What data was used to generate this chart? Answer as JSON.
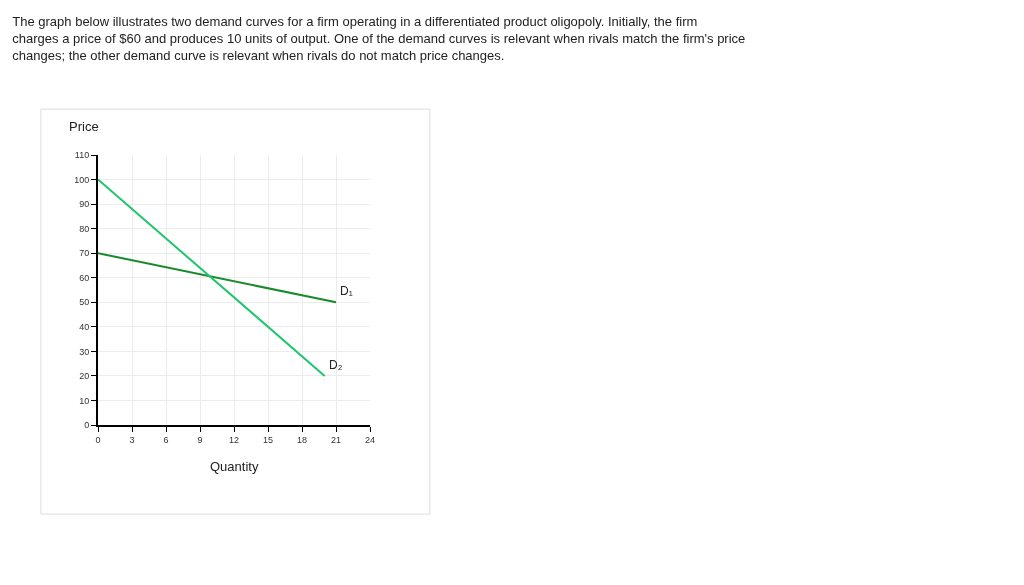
{
  "chart_data": {
    "type": "line",
    "title": "The graph below illustrates two demand curves for a firm operating in a differentiated product oligopoly. Initially, the firm charges a price of $60 and produces 10 units of output. One of the demand curves is relevant when rivals match the firm's price changes; the other demand curve is relevant when rivals do not match price changes.",
    "xlabel": "Quantity",
    "ylabel": "Price",
    "series": [
      {
        "name": "D₁",
        "color": "#1a8a2e",
        "x": [
          0,
          21
        ],
        "values": [
          70,
          50
        ]
      },
      {
        "name": "D₂",
        "color": "#1ec46e",
        "x": [
          0,
          20
        ],
        "values": [
          100,
          20
        ]
      }
    ],
    "xlim": [
      0,
      24
    ],
    "xticks": [
      0,
      3,
      6,
      9,
      12,
      15,
      18,
      21,
      24
    ],
    "ylim": [
      0,
      110
    ],
    "yticks": [
      0,
      10,
      20,
      30,
      40,
      50,
      60,
      70,
      80,
      90,
      100,
      110
    ],
    "grid": true,
    "legend": false,
    "marker": "none",
    "line_style": "solid"
  }
}
